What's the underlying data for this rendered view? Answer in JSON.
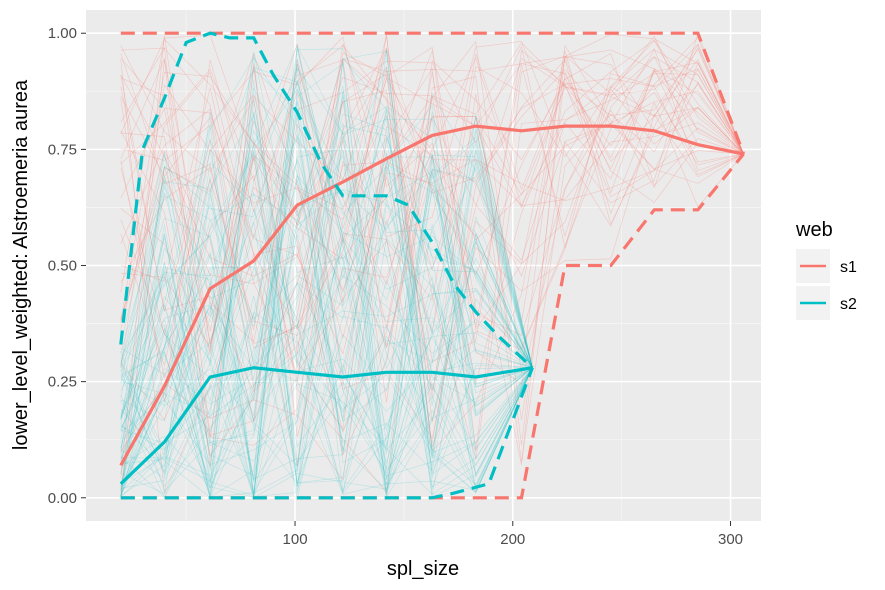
{
  "chart_data": {
    "type": "line",
    "title": "",
    "xlabel": "spl_size",
    "ylabel": "lower_level_weighted: Alstroemeria aurea",
    "xlim": [
      4,
      314
    ],
    "ylim": [
      -0.05,
      1.05
    ],
    "x_ticks": [
      100,
      200,
      300
    ],
    "x_tick_labels": [
      "100",
      "200",
      "300"
    ],
    "y_ticks": [
      0,
      0.25,
      0.5,
      0.75,
      1
    ],
    "y_tick_labels": [
      "0.00",
      "0.25",
      "0.50",
      "0.75",
      "1.00"
    ],
    "grid": true,
    "legend": {
      "title": "web",
      "position": "right"
    },
    "series": [
      {
        "name": "s1",
        "color": "#F8766D",
        "mean": {
          "x": [
            20,
            40,
            61,
            81,
            101,
            122,
            142,
            163,
            183,
            204,
            224,
            245,
            265,
            285,
            306
          ],
          "y": [
            0.07,
            0.24,
            0.45,
            0.51,
            0.63,
            0.68,
            0.73,
            0.78,
            0.8,
            0.79,
            0.8,
            0.8,
            0.79,
            0.76,
            0.74
          ]
        },
        "upper": {
          "x": [
            20,
            40,
            61,
            81,
            101,
            122,
            142,
            163,
            183,
            204,
            224,
            245,
            265,
            285,
            306
          ],
          "y": [
            1,
            1,
            1,
            1,
            1,
            1,
            1,
            1,
            1,
            1,
            1,
            1,
            1,
            1,
            0.74
          ]
        },
        "lower": {
          "x": [
            20,
            40,
            61,
            81,
            101,
            122,
            142,
            163,
            183,
            204,
            224,
            245,
            265,
            285,
            306
          ],
          "y": [
            0,
            0,
            0,
            0,
            0,
            0,
            0,
            0,
            0,
            0,
            0.5,
            0.5,
            0.62,
            0.62,
            0.74
          ]
        }
      },
      {
        "name": "s2",
        "color": "#00BFC4",
        "mean": {
          "x": [
            20,
            40,
            61,
            81,
            101,
            122,
            142,
            163,
            183,
            209
          ],
          "y": [
            0.03,
            0.12,
            0.26,
            0.28,
            0.27,
            0.26,
            0.27,
            0.27,
            0.26,
            0.28
          ]
        },
        "upper": {
          "x": [
            20,
            30,
            40,
            50,
            61,
            70,
            81,
            90,
            101,
            112,
            122,
            132,
            142,
            152,
            163,
            173,
            183,
            193,
            209
          ],
          "y": [
            0.33,
            0.75,
            0.86,
            0.98,
            1,
            0.99,
            0.99,
            0.91,
            0.83,
            0.72,
            0.65,
            0.65,
            0.65,
            0.63,
            0.55,
            0.46,
            0.4,
            0.35,
            0.28
          ]
        },
        "lower": {
          "x": [
            20,
            40,
            61,
            81,
            101,
            122,
            142,
            163,
            173,
            189,
            209
          ],
          "y": [
            0,
            0,
            0,
            0,
            0,
            0,
            0,
            0,
            0.01,
            0.03,
            0.28
          ]
        }
      }
    ]
  }
}
